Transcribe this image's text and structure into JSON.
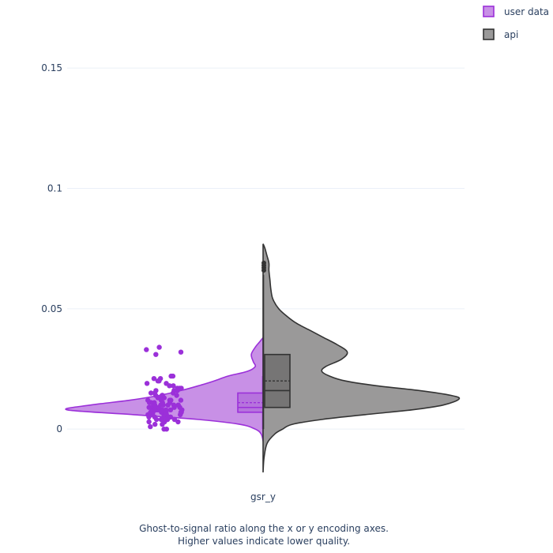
{
  "chart_data": {
    "type": "violin",
    "category": "gsr_y",
    "ylim": [
      -0.018,
      0.175
    ],
    "yticks": [
      0,
      0.05,
      0.1,
      0.15
    ],
    "ytick_labels": [
      "0",
      "0.05",
      "0.1",
      "0.15"
    ],
    "grid": true,
    "legend_position": "top-right",
    "caption_line1": "Ghost-to-signal ratio along the x or y encoding axes.",
    "caption_line2": "Higher values indicate lower quality.",
    "series": [
      {
        "name": "user data",
        "side": "negative",
        "fill_color": "#c890e6",
        "line_color": "#9b30d9",
        "point_color": "#9b30d9",
        "density_range": [
          -0.005,
          0.038
        ],
        "density": [
          {
            "y": -0.005,
            "w": 0.0
          },
          {
            "y": -0.002,
            "w": 0.01
          },
          {
            "y": 0.0,
            "w": 0.04
          },
          {
            "y": 0.002,
            "w": 0.12
          },
          {
            "y": 0.004,
            "w": 0.33
          },
          {
            "y": 0.006,
            "w": 0.66
          },
          {
            "y": 0.008,
            "w": 1.0
          },
          {
            "y": 0.01,
            "w": 0.88
          },
          {
            "y": 0.012,
            "w": 0.68
          },
          {
            "y": 0.014,
            "w": 0.53
          },
          {
            "y": 0.016,
            "w": 0.42
          },
          {
            "y": 0.018,
            "w": 0.33
          },
          {
            "y": 0.02,
            "w": 0.25
          },
          {
            "y": 0.022,
            "w": 0.18
          },
          {
            "y": 0.024,
            "w": 0.08
          },
          {
            "y": 0.026,
            "w": 0.04
          },
          {
            "y": 0.028,
            "w": 0.05
          },
          {
            "y": 0.031,
            "w": 0.06
          },
          {
            "y": 0.034,
            "w": 0.04
          },
          {
            "y": 0.036,
            "w": 0.02
          },
          {
            "y": 0.038,
            "w": 0.0
          }
        ],
        "box": {
          "q1": 0.007,
          "median": 0.009,
          "q3": 0.015,
          "mean": 0.011,
          "lower_fence": 0.0,
          "upper_fence": 0.022
        },
        "points": [
          0.0,
          0.0,
          0.001,
          0.002,
          0.002,
          0.003,
          0.003,
          0.003,
          0.004,
          0.004,
          0.004,
          0.004,
          0.005,
          0.005,
          0.005,
          0.005,
          0.005,
          0.006,
          0.006,
          0.006,
          0.006,
          0.006,
          0.006,
          0.007,
          0.007,
          0.007,
          0.007,
          0.007,
          0.007,
          0.007,
          0.008,
          0.008,
          0.008,
          0.008,
          0.008,
          0.008,
          0.008,
          0.008,
          0.009,
          0.009,
          0.009,
          0.009,
          0.009,
          0.009,
          0.009,
          0.01,
          0.01,
          0.01,
          0.01,
          0.01,
          0.01,
          0.011,
          0.011,
          0.011,
          0.011,
          0.011,
          0.012,
          0.012,
          0.012,
          0.012,
          0.012,
          0.013,
          0.013,
          0.013,
          0.013,
          0.014,
          0.014,
          0.014,
          0.014,
          0.015,
          0.015,
          0.015,
          0.016,
          0.016,
          0.016,
          0.017,
          0.017,
          0.017,
          0.018,
          0.018,
          0.019,
          0.019,
          0.02,
          0.02,
          0.021,
          0.021,
          0.022,
          0.022,
          0.031,
          0.032,
          0.033,
          0.034
        ]
      },
      {
        "name": "api",
        "side": "positive",
        "fill_color": "#9a9999",
        "line_color": "#333333",
        "point_color": "#333333",
        "density_range": [
          -0.018,
          0.077
        ],
        "density": [
          {
            "y": -0.018,
            "w": 0.0
          },
          {
            "y": -0.012,
            "w": 0.005
          },
          {
            "y": -0.006,
            "w": 0.02
          },
          {
            "y": -0.002,
            "w": 0.06
          },
          {
            "y": 0.0,
            "w": 0.1
          },
          {
            "y": 0.002,
            "w": 0.15
          },
          {
            "y": 0.004,
            "w": 0.3
          },
          {
            "y": 0.006,
            "w": 0.52
          },
          {
            "y": 0.008,
            "w": 0.76
          },
          {
            "y": 0.01,
            "w": 0.92
          },
          {
            "y": 0.0125,
            "w": 1.0
          },
          {
            "y": 0.014,
            "w": 0.96
          },
          {
            "y": 0.016,
            "w": 0.8
          },
          {
            "y": 0.018,
            "w": 0.58
          },
          {
            "y": 0.02,
            "w": 0.42
          },
          {
            "y": 0.022,
            "w": 0.34
          },
          {
            "y": 0.024,
            "w": 0.3
          },
          {
            "y": 0.026,
            "w": 0.32
          },
          {
            "y": 0.029,
            "w": 0.4
          },
          {
            "y": 0.032,
            "w": 0.43
          },
          {
            "y": 0.035,
            "w": 0.38
          },
          {
            "y": 0.038,
            "w": 0.31
          },
          {
            "y": 0.041,
            "w": 0.24
          },
          {
            "y": 0.044,
            "w": 0.17
          },
          {
            "y": 0.047,
            "w": 0.12
          },
          {
            "y": 0.05,
            "w": 0.08
          },
          {
            "y": 0.054,
            "w": 0.05
          },
          {
            "y": 0.058,
            "w": 0.04
          },
          {
            "y": 0.062,
            "w": 0.035
          },
          {
            "y": 0.066,
            "w": 0.03
          },
          {
            "y": 0.069,
            "w": 0.03
          },
          {
            "y": 0.072,
            "w": 0.02
          },
          {
            "y": 0.075,
            "w": 0.01
          },
          {
            "y": 0.077,
            "w": 0.0
          }
        ],
        "box": {
          "q1": 0.009,
          "median": 0.016,
          "q3": 0.031,
          "mean": 0.02,
          "lower_fence": 0.0,
          "upper_fence": 0.064
        },
        "outliers": [
          0.066,
          0.067,
          0.068,
          0.069
        ]
      }
    ]
  }
}
